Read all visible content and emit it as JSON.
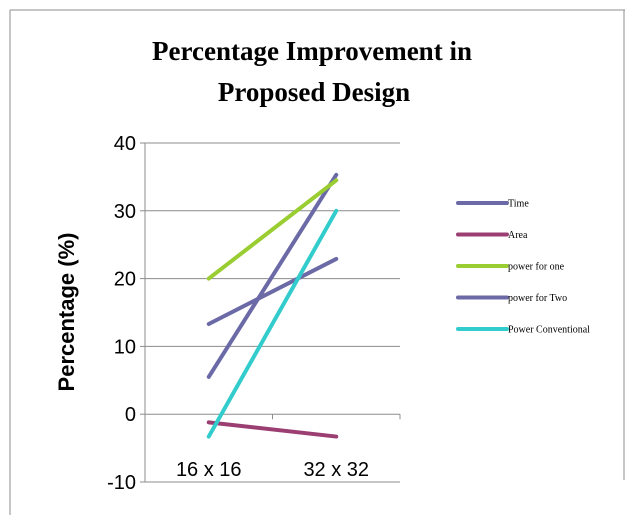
{
  "chart_data": {
    "type": "line",
    "title_lines": [
      "Percentage  Improvement in",
      "Proposed Design"
    ],
    "xlabel": "",
    "ylabel": "Percentage (%)",
    "categories": [
      "16 x 16",
      "32 x 32"
    ],
    "ylim": [
      -10,
      40
    ],
    "yticks": [
      "-10",
      "0",
      "10",
      "20",
      "30",
      "40"
    ],
    "grid": true,
    "legend_position": "right",
    "series": [
      {
        "name": "Time",
        "color": "#6b6aa6",
        "values": [
          5.5,
          35.3
        ]
      },
      {
        "name": "Area",
        "color": "#9b3f72",
        "values": [
          -1.2,
          -3.3
        ]
      },
      {
        "name": "power for one",
        "color": "#9acd32",
        "values": [
          20,
          34.5
        ]
      },
      {
        "name": "power for Two",
        "color": "#6b6aa6",
        "values": [
          13.3,
          22.9
        ]
      },
      {
        "name": "Power Conventional",
        "color": "#33cccc",
        "values": [
          -3.3,
          30
        ]
      }
    ]
  }
}
